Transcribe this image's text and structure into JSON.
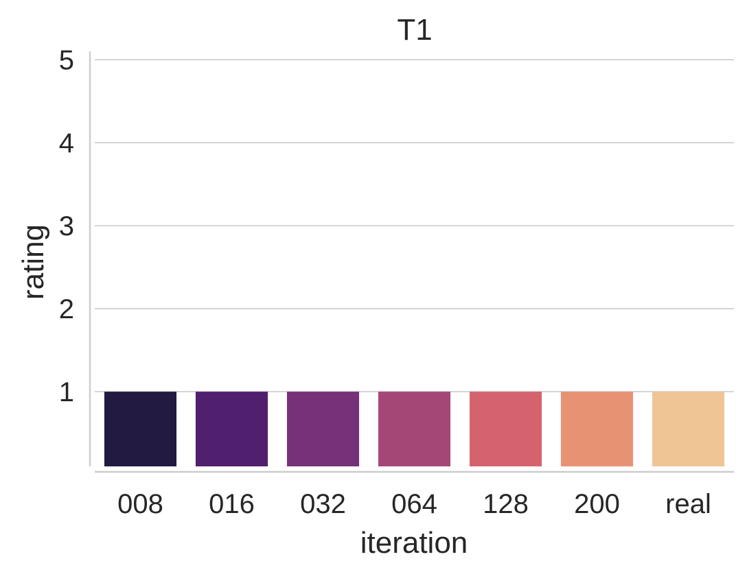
{
  "chart_data": {
    "type": "bar",
    "title": "T1",
    "xlabel": "iteration",
    "ylabel": "rating",
    "categories": [
      "008",
      "016",
      "032",
      "064",
      "128",
      "200",
      "real"
    ],
    "values": [
      1,
      1,
      1,
      1,
      1,
      1,
      1
    ],
    "colors": [
      "#221a40",
      "#501f6e",
      "#773178",
      "#a54776",
      "#d4636e",
      "#e89274",
      "#efc596"
    ],
    "ylim": [
      0.1,
      5.1
    ],
    "yticks": [
      1,
      2,
      3,
      4,
      5
    ],
    "grid": "y",
    "legend": "none"
  }
}
